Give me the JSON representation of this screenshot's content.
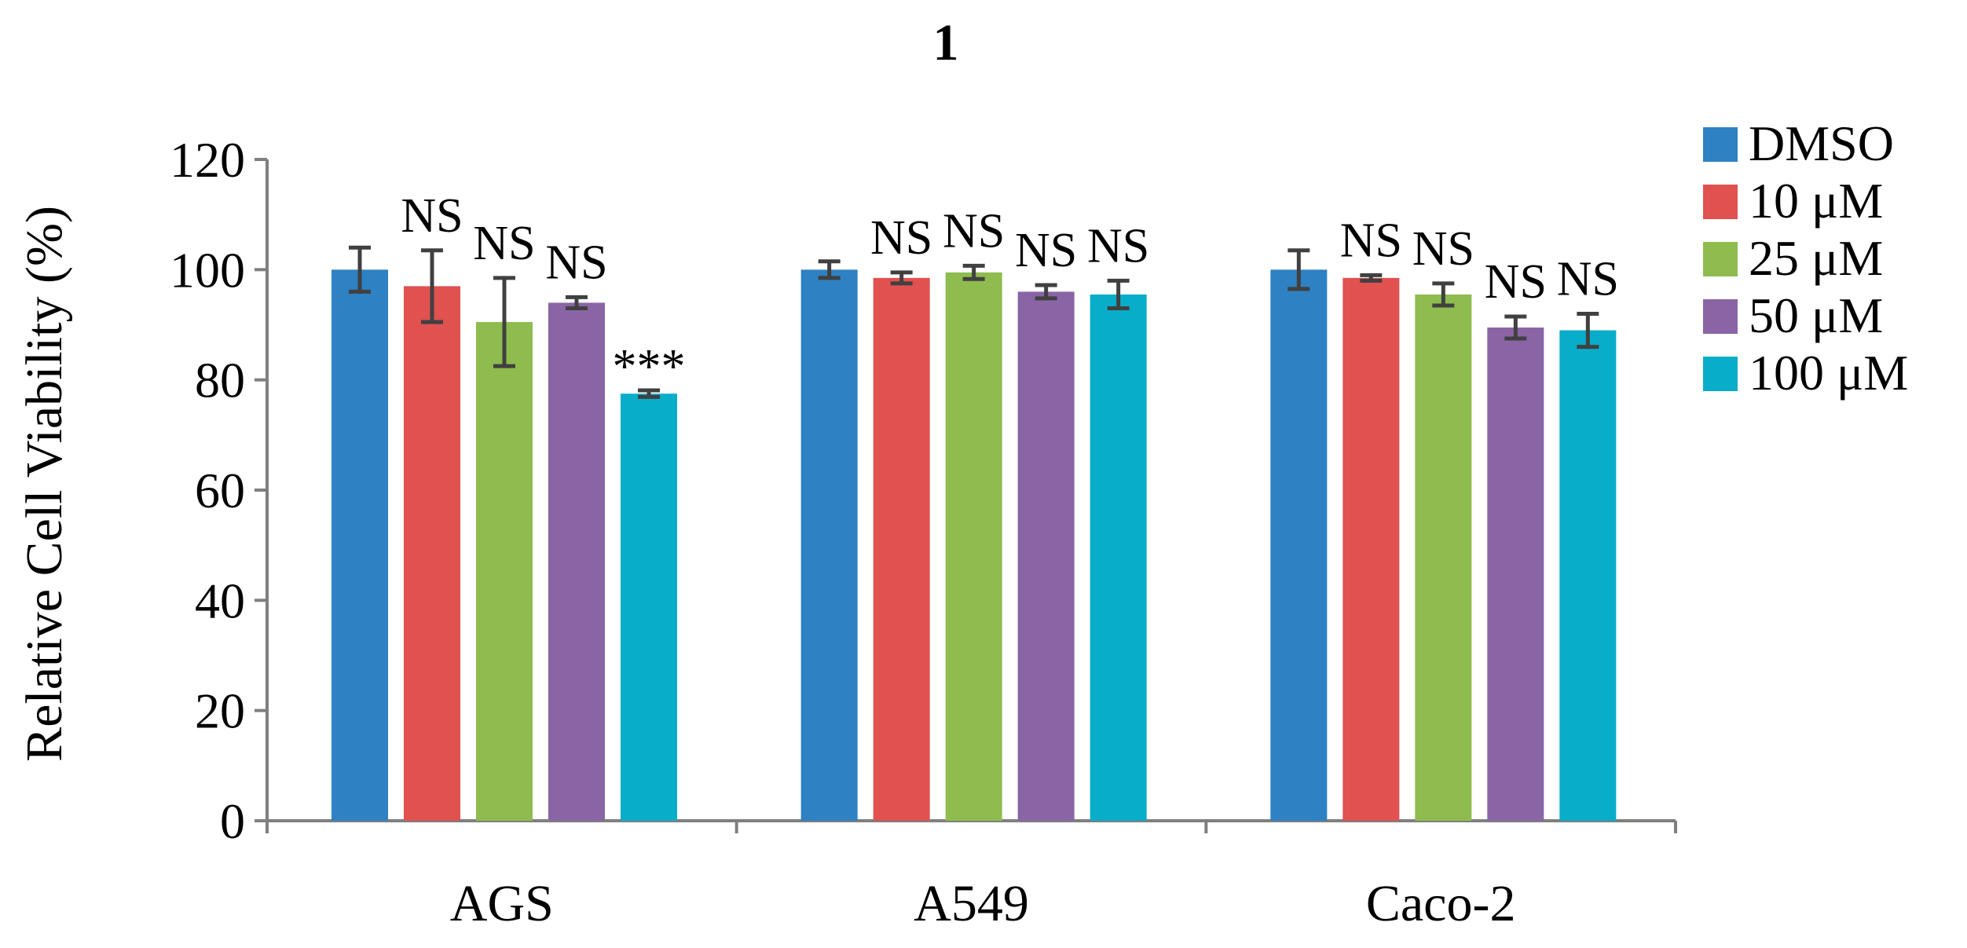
{
  "chart_data": {
    "type": "bar",
    "title": "1",
    "xlabel": "",
    "ylabel": "Relative Cell Viability (%)",
    "ylim": [
      0,
      120
    ],
    "yticks": [
      0,
      20,
      40,
      60,
      80,
      100,
      120
    ],
    "grid": false,
    "legend_position": "right",
    "categories": [
      "AGS",
      "A549",
      "Caco-2"
    ],
    "series": [
      {
        "name": "DMSO",
        "color": "#2e81c2",
        "values": [
          100,
          100,
          100
        ],
        "errors": [
          4,
          1.5,
          3.5
        ],
        "annotations": [
          "",
          "",
          ""
        ]
      },
      {
        "name": "10 μM",
        "color": "#e05150",
        "values": [
          97,
          98.5,
          98.5
        ],
        "errors": [
          6.5,
          1,
          0.5
        ],
        "annotations": [
          "NS",
          "NS",
          "NS"
        ]
      },
      {
        "name": "25 μM",
        "color": "#8ebc4f",
        "values": [
          90.5,
          99.5,
          95.5
        ],
        "errors": [
          8,
          1.2,
          2
        ],
        "annotations": [
          "NS",
          "NS",
          "NS"
        ]
      },
      {
        "name": "50 μM",
        "color": "#8a65a6",
        "values": [
          94,
          96,
          89.5
        ],
        "errors": [
          1,
          1.2,
          2
        ],
        "annotations": [
          "NS",
          "NS",
          "NS"
        ]
      },
      {
        "name": "100 μM",
        "color": "#08adc9",
        "values": [
          77.5,
          95.5,
          89
        ],
        "errors": [
          0.6,
          2.5,
          3
        ],
        "annotations": [
          "***",
          "NS",
          "NS"
        ]
      }
    ]
  }
}
